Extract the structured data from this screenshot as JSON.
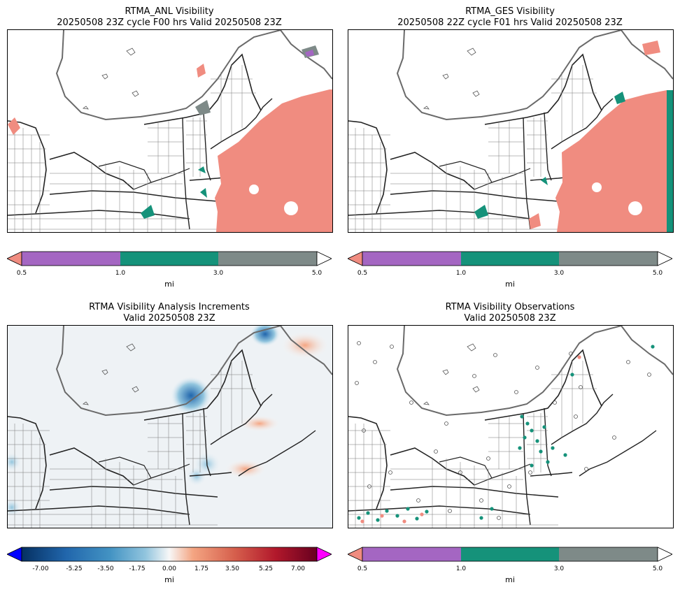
{
  "panels": {
    "anl": {
      "title_line1": "RTMA_ANL Visibility",
      "title_line2": "20250508 23Z cycle F00 hrs Valid 20250508 23Z"
    },
    "ges": {
      "title_line1": "RTMA_GES Visibility",
      "title_line2": "20250508 22Z cycle F01 hrs Valid 20250508 23Z"
    },
    "inc": {
      "title_line1": "RTMA Visibility Analysis Increments",
      "title_line2": "Valid 20250508 23Z"
    },
    "obs": {
      "title_line1": "RTMA Visibility Observations",
      "title_line2": "Valid 20250508 23Z"
    }
  },
  "vis_colorbar": {
    "ticks": [
      "0.5",
      "1.0",
      "3.0",
      "5.0"
    ],
    "unit": "mi",
    "colors": [
      "#f08c80",
      "#a466c2",
      "#15927a",
      "#7e8a88",
      "#ffffff"
    ]
  },
  "inc_colorbar": {
    "ticks": [
      "-7.00",
      "-5.25",
      "-3.50",
      "-1.75",
      "0.00",
      "1.75",
      "3.50",
      "5.25",
      "7.00"
    ],
    "unit": "mi",
    "colors": [
      "#0000ff",
      "#053061",
      "#2166ac",
      "#4393c3",
      "#92c5de",
      "#f7f7f7",
      "#f4a582",
      "#d6604d",
      "#b2182b",
      "#67001f",
      "#ff00ff"
    ]
  }
}
